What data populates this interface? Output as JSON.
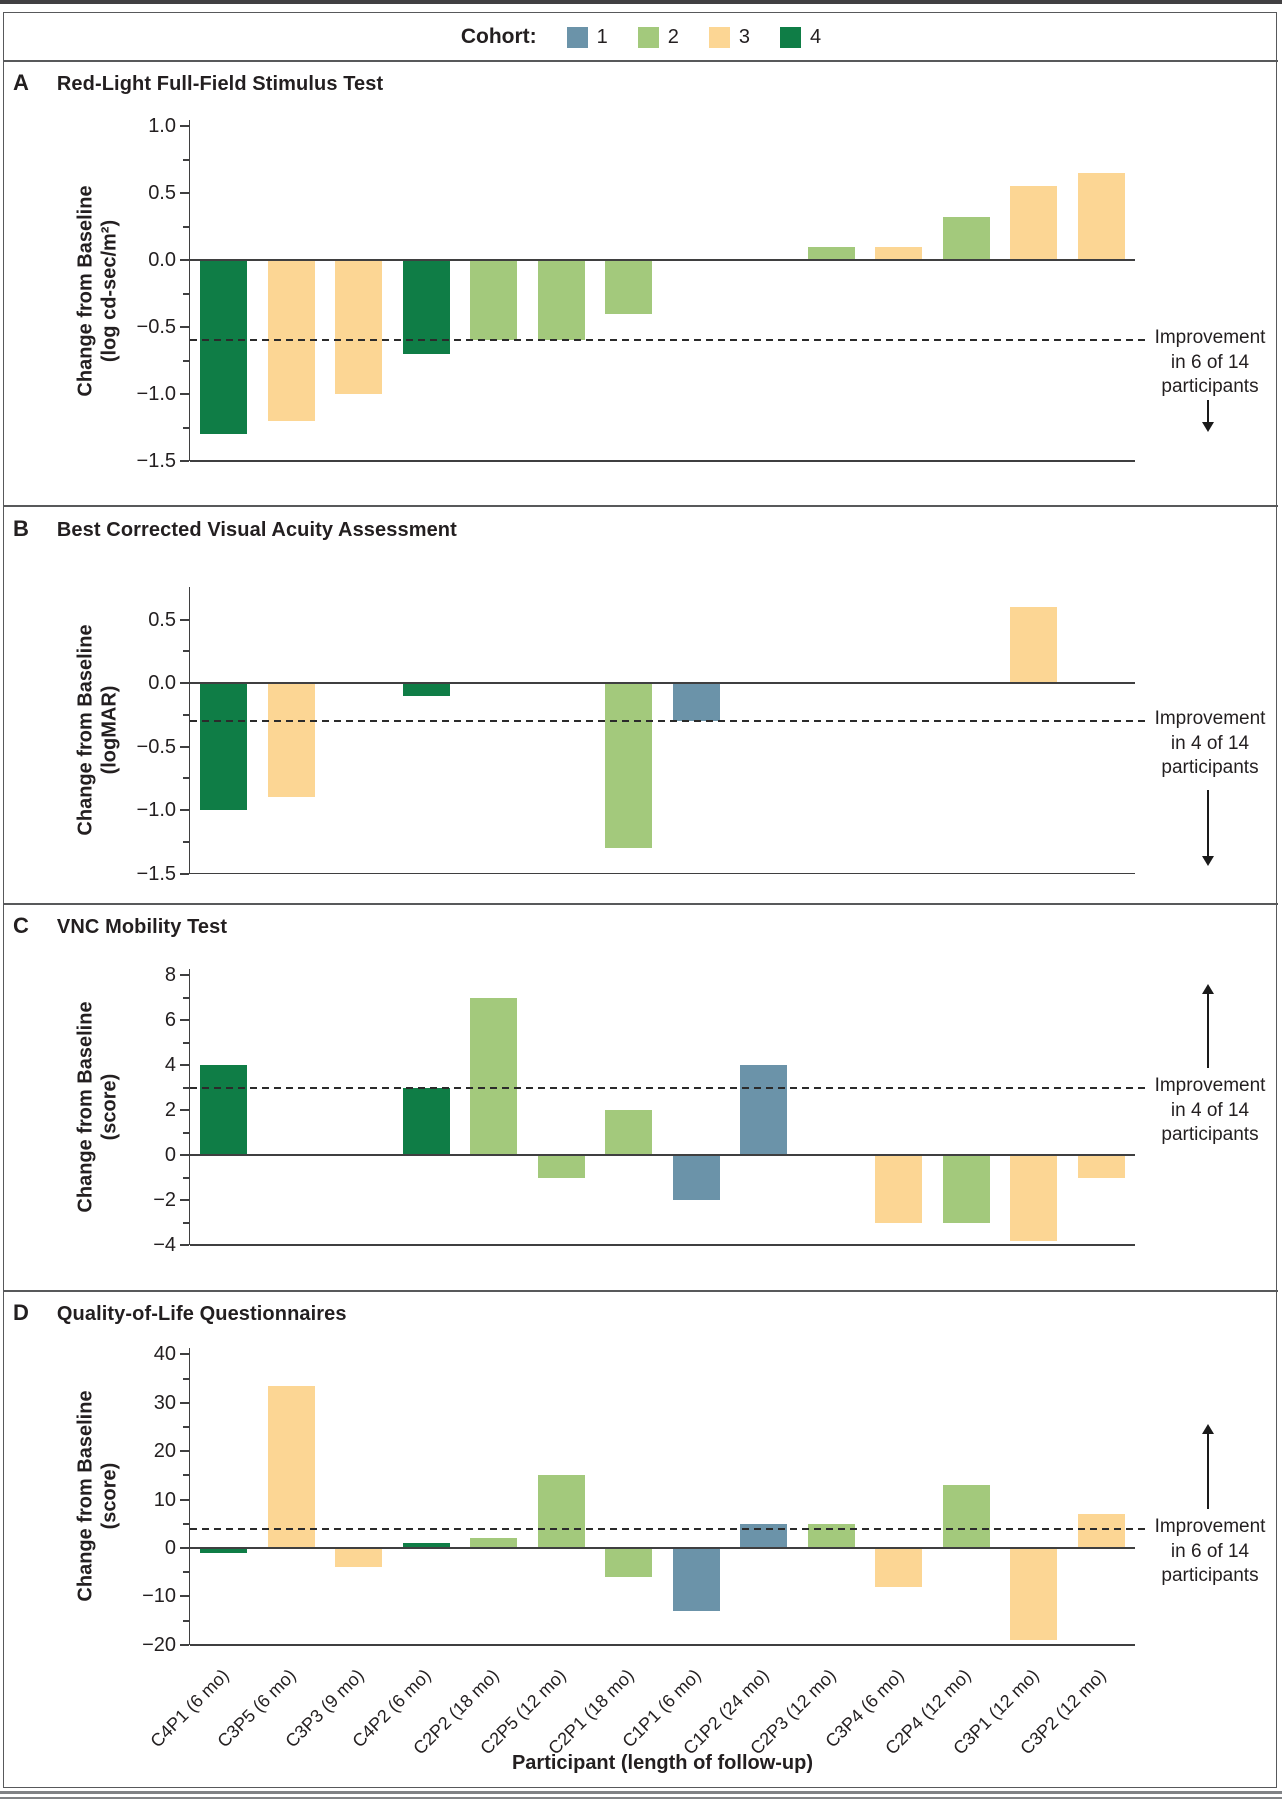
{
  "figure": {
    "legend": {
      "label": "Cohort:",
      "items": [
        {
          "label": "1",
          "color": "#6b93a9"
        },
        {
          "label": "2",
          "color": "#a3c97c"
        },
        {
          "label": "3",
          "color": "#fcd694"
        },
        {
          "label": "4",
          "color": "#0f7d46"
        }
      ]
    },
    "xlabel": "Participant (length of follow-up)"
  },
  "participants": [
    {
      "label": "C4P1 (6 mo)",
      "cohort": "4"
    },
    {
      "label": "C3P5 (6 mo)",
      "cohort": "3"
    },
    {
      "label": "C3P3 (9 mo)",
      "cohort": "3"
    },
    {
      "label": "C4P2 (6 mo)",
      "cohort": "4"
    },
    {
      "label": "C2P2 (18 mo)",
      "cohort": "2"
    },
    {
      "label": "C2P5 (12 mo)",
      "cohort": "2"
    },
    {
      "label": "C2P1 (18 mo)",
      "cohort": "2"
    },
    {
      "label": "C1P1 (6 mo)",
      "cohort": "1"
    },
    {
      "label": "C1P2 (24 mo)",
      "cohort": "1"
    },
    {
      "label": "C2P3 (12 mo)",
      "cohort": "2"
    },
    {
      "label": "C3P4 (6 mo)",
      "cohort": "3"
    },
    {
      "label": "C2P4 (12 mo)",
      "cohort": "2"
    },
    {
      "label": "C3P1 (12 mo)",
      "cohort": "3"
    },
    {
      "label": "C3P2 (12 mo)",
      "cohort": "3"
    }
  ],
  "chart_data": [
    {
      "type": "bar",
      "panel": "A",
      "title": "Red-Light Full-Field Stimulus Test",
      "ylabel": "Change from Baseline",
      "yunit": "(log cd-sec/m²)",
      "yticks": [
        1.0,
        0.5,
        0.0,
        -0.5,
        -1.0,
        -1.5
      ],
      "ytick_labels": [
        "1.0",
        "0.5",
        "0.0",
        "−0.5",
        "−1.0",
        "−1.5"
      ],
      "ylim": [
        -1.5,
        1.0
      ],
      "dashed_line": -0.6,
      "annotation": {
        "line1": "Improvement",
        "line2": "in 6 of 14",
        "line3": "participants",
        "arrow": "down"
      },
      "values": [
        -1.3,
        -1.2,
        -1.0,
        -0.7,
        -0.6,
        -0.6,
        -0.4,
        null,
        null,
        0.1,
        0.1,
        0.32,
        0.55,
        0.65
      ]
    },
    {
      "type": "bar",
      "panel": "B",
      "title": "Best Corrected Visual Acuity Assessment",
      "ylabel": "Change from Baseline",
      "yunit": "(logMAR)",
      "yticks": [
        0.5,
        0.0,
        -0.5,
        -1.0,
        -1.5
      ],
      "ytick_labels": [
        "0.5",
        "0.0",
        "−0.5",
        "−1.0",
        "−1.5"
      ],
      "ylim": [
        -1.5,
        0.75
      ],
      "dashed_line": -0.3,
      "annotation": {
        "line1": "Improvement",
        "line2": "in 4 of 14",
        "line3": "participants",
        "arrow": "down"
      },
      "values": [
        -1.0,
        -0.9,
        null,
        -0.1,
        null,
        null,
        -1.3,
        -0.3,
        null,
        null,
        null,
        null,
        0.6,
        null
      ]
    },
    {
      "type": "bar",
      "panel": "C",
      "title": "VNC Mobility Test",
      "ylabel": "Change from Baseline",
      "yunit": "(score)",
      "yticks": [
        8,
        6,
        4,
        2,
        0,
        -2,
        -4
      ],
      "ytick_labels": [
        "8",
        "6",
        "4",
        "2",
        "0",
        "−2",
        "−4"
      ],
      "ylim": [
        -4,
        8.3
      ],
      "dashed_line": 3,
      "annotation": {
        "line1": "Improvement",
        "line2": "in 4 of 14",
        "line3": "participants",
        "arrow": "up"
      },
      "values": [
        4,
        null,
        null,
        3,
        7,
        -1,
        2,
        -2,
        4,
        null,
        -3,
        -3,
        -3.8,
        -1
      ]
    },
    {
      "type": "bar",
      "panel": "D",
      "title": "Quality-of-Life Questionnaires",
      "ylabel": "Change from Baseline",
      "yunit": "(score)",
      "yticks": [
        40,
        30,
        20,
        10,
        0,
        -10,
        -20
      ],
      "ytick_labels": [
        "40",
        "30",
        "20",
        "10",
        "0",
        "−10",
        "−20"
      ],
      "ylim": [
        -20,
        41.5
      ],
      "dashed_line": 4,
      "annotation": {
        "line1": "Improvement",
        "line2": "in 6 of 14",
        "line3": "participants",
        "arrow": "up"
      },
      "values": [
        -1,
        33.5,
        -4,
        1,
        2,
        15,
        -6,
        -13,
        5,
        5,
        -8,
        13,
        -19,
        7
      ]
    }
  ]
}
